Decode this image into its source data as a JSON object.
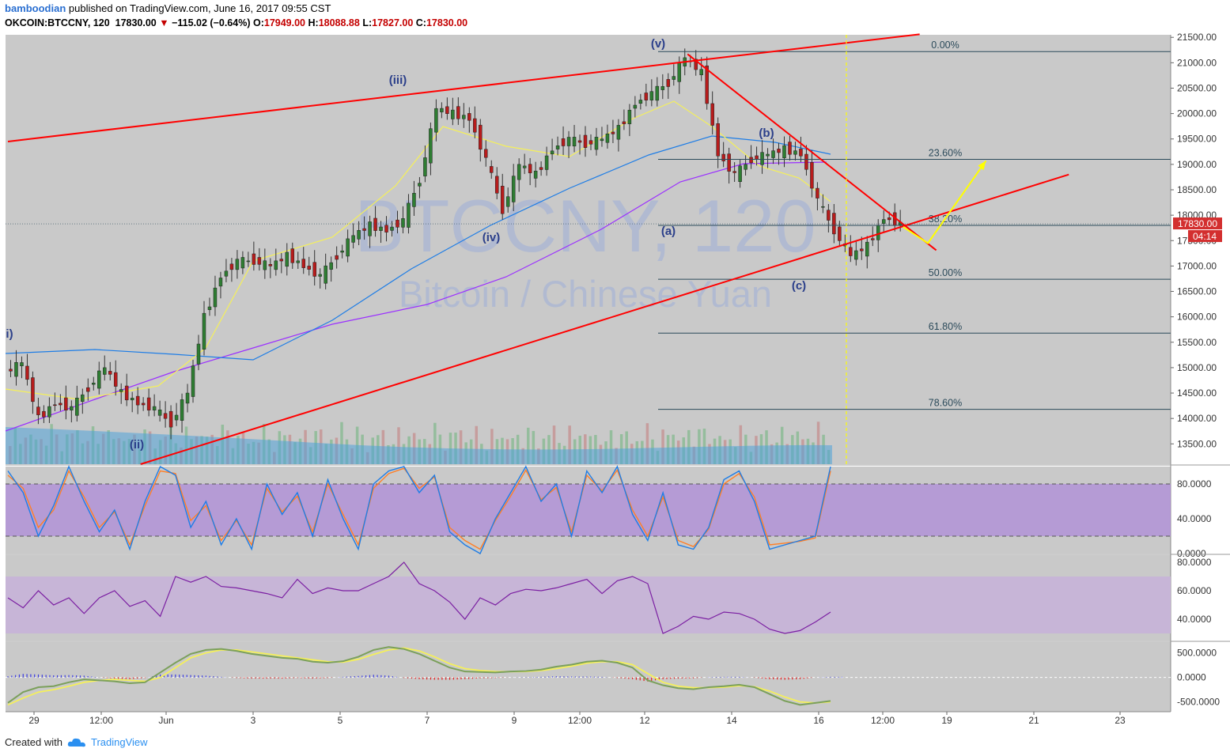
{
  "header": {
    "author": "bamboodian",
    "published_text": "published on TradingView.com, June 16, 2017 09:55 CST",
    "symbol_line": "OKCOIN:BTCCNY, 120",
    "last": "17830.00",
    "change_arrow": "▼",
    "change": "−115.02 (−0.64%)",
    "o_label": "O:",
    "o_value": "17949.00",
    "h_label": "H:",
    "h_value": "18088.88",
    "l_label": "L:",
    "l_value": "17827.00",
    "c_label": "C:",
    "c_value": "17830.00"
  },
  "watermark": {
    "symbol": "BTCCNY, 120",
    "description": "Bitcoin / Chinese Yuan"
  },
  "footer": {
    "created_with": "Created with",
    "brand": "TradingView",
    "logo_icon": "tradingview-cloud-icon"
  },
  "colors": {
    "pane_bg": "#c9c9c9",
    "up_candle": "#2e7d32",
    "down_candle": "#b71c1c",
    "trendline": "#ff0000",
    "forecast": "#ffff00",
    "fib_line": "#2b4a5a",
    "ema_fast": "#ffffff",
    "ema_mid": "#f5f05a",
    "ema_slow": "#1e7de6",
    "sma_long": "#9b30ff",
    "stoch_k": "#1e7de6",
    "stoch_d": "#ff7f27",
    "stoch_band": "#b090d8",
    "rsi": "#7b1fa2",
    "rsi_band": "#c6b3d8",
    "price_label_bg": "#d32f2f"
  },
  "chart_data": [
    {
      "type": "candlestick",
      "pane": "price",
      "symbol": "OKCOIN:BTCCNY",
      "interval": "120",
      "ylim": [
        13100,
        21550
      ],
      "y_ticks": [
        13500,
        14000,
        14500,
        15000,
        15500,
        16000,
        16500,
        17000,
        17500,
        18000,
        18500,
        19000,
        19500,
        20000,
        20500,
        21000,
        21500
      ],
      "y_tick_labels": [
        "13500.00",
        "14000.00",
        "14500.00",
        "15000.00",
        "15500.00",
        "16000.00",
        "16500.00",
        "17000.00",
        "17500.00",
        "18000.00",
        "18500.00",
        "19000.00",
        "19500.00",
        "20000.00",
        "20500.00",
        "21000.00",
        "21500.00"
      ],
      "x_tick_labels": [
        "29",
        "12:00",
        "Jun",
        "3",
        "5",
        "7",
        "9",
        "12:00",
        "12",
        "14",
        "16",
        "12:00",
        "19",
        "21",
        "23"
      ],
      "approx_close_path": [
        [
          0,
          14900
        ],
        [
          1,
          15100
        ],
        [
          2,
          14000
        ],
        [
          3,
          14300
        ],
        [
          4,
          14200
        ],
        [
          5,
          14600
        ],
        [
          6,
          15000
        ],
        [
          7,
          14500
        ],
        [
          8,
          14300
        ],
        [
          9,
          14200
        ],
        [
          10,
          13900
        ],
        [
          11,
          14500
        ],
        [
          12,
          16000
        ],
        [
          13,
          16800
        ],
        [
          14,
          17100
        ],
        [
          15,
          17100
        ],
        [
          16,
          17000
        ],
        [
          17,
          17200
        ],
        [
          18,
          17000
        ],
        [
          19,
          16800
        ],
        [
          20,
          17200
        ],
        [
          21,
          17600
        ],
        [
          22,
          17800
        ],
        [
          23,
          17700
        ],
        [
          24,
          17900
        ],
        [
          25,
          18700
        ],
        [
          26,
          20100
        ],
        [
          27,
          20000
        ],
        [
          28,
          19900
        ],
        [
          29,
          19100
        ],
        [
          30,
          18100
        ],
        [
          31,
          19000
        ],
        [
          32,
          18800
        ],
        [
          33,
          19300
        ],
        [
          34,
          19500
        ],
        [
          35,
          19400
        ],
        [
          36,
          19500
        ],
        [
          37,
          19700
        ],
        [
          38,
          20200
        ],
        [
          39,
          20400
        ],
        [
          40,
          20600
        ],
        [
          41,
          21100
        ],
        [
          42,
          20800
        ],
        [
          43,
          19200
        ],
        [
          44,
          18800
        ],
        [
          45,
          19100
        ],
        [
          46,
          19200
        ],
        [
          47,
          19300
        ],
        [
          48,
          19200
        ],
        [
          49,
          18300
        ],
        [
          50,
          17700
        ],
        [
          51,
          17200
        ],
        [
          52,
          17400
        ],
        [
          53,
          17950
        ],
        [
          54,
          17830
        ]
      ],
      "last_price": 17830.0,
      "price_label": "17830.00",
      "countdown_label": "04:14",
      "fibonacci": [
        {
          "level": "0.00%",
          "price": 21220
        },
        {
          "level": "23.60%",
          "price": 19100
        },
        {
          "level": "38.20%",
          "price": 17800
        },
        {
          "level": "50.00%",
          "price": 16740
        },
        {
          "level": "61.80%",
          "price": 15680
        },
        {
          "level": "78.60%",
          "price": 14180
        }
      ],
      "wave_labels": [
        "i)",
        "(ii)",
        "(iii)",
        "(iv)",
        "(v)",
        "(a)",
        "(b)",
        "(c)"
      ],
      "trendlines": [
        {
          "name": "upper-channel",
          "from": [
            0,
            19450
          ],
          "to": [
            55,
            21560
          ]
        },
        {
          "name": "lower-channel",
          "from": [
            8,
            13100
          ],
          "to": [
            64,
            18800
          ]
        },
        {
          "name": "downtrend",
          "from": [
            41,
            21170
          ],
          "to": [
            56,
            17310
          ]
        }
      ],
      "forecast_path": [
        [
          54,
          17770
        ],
        [
          55.5,
          17450
        ],
        [
          59,
          19070
        ]
      ]
    },
    {
      "type": "line",
      "pane": "stochastic",
      "ylim": [
        0,
        100
      ],
      "y_ticks": [
        0,
        40,
        80
      ],
      "y_tick_labels": [
        "0.0000",
        "40.0000",
        "80.0000"
      ],
      "band": [
        20,
        80
      ],
      "series": [
        {
          "name": "",
          "role": "K",
          "values": [
            95,
            70,
            20,
            55,
            100,
            60,
            25,
            50,
            5,
            60,
            100,
            90,
            30,
            60,
            10,
            40,
            5,
            80,
            45,
            70,
            20,
            85,
            40,
            5,
            80,
            95,
            100,
            70,
            90,
            25,
            10,
            0,
            40,
            70,
            100,
            60,
            80,
            20,
            95,
            70,
            100,
            45,
            15,
            70,
            10,
            5,
            30,
            85,
            95,
            60,
            5,
            10,
            15,
            20,
            100
          ]
        },
        {
          "name": "",
          "role": "D",
          "values": [
            90,
            75,
            30,
            50,
            95,
            65,
            30,
            48,
            10,
            55,
            95,
            92,
            38,
            55,
            15,
            38,
            10,
            75,
            48,
            66,
            25,
            80,
            45,
            10,
            75,
            92,
            98,
            75,
            88,
            30,
            15,
            5,
            38,
            66,
            96,
            62,
            76,
            25,
            90,
            72,
            96,
            50,
            20,
            65,
            15,
            8,
            28,
            80,
            92,
            65,
            10,
            12,
            14,
            18,
            95
          ]
        }
      ]
    },
    {
      "type": "line",
      "pane": "rsi",
      "ylim": [
        25,
        85
      ],
      "y_ticks": [
        40,
        60,
        80
      ],
      "y_tick_labels": [
        "40.0000",
        "60.0000",
        "80.0000"
      ],
      "band": [
        30,
        70
      ],
      "series": [
        {
          "name": "",
          "role": "RSI",
          "values": [
            55,
            48,
            60,
            50,
            55,
            44,
            55,
            60,
            49,
            53,
            42,
            70,
            66,
            70,
            63,
            62,
            60,
            58,
            55,
            68,
            58,
            62,
            60,
            60,
            65,
            70,
            80,
            65,
            60,
            52,
            40,
            55,
            50,
            58,
            61,
            60,
            62,
            65,
            68,
            58,
            67,
            70,
            65,
            30,
            35,
            42,
            40,
            45,
            44,
            40,
            33,
            30,
            32,
            38,
            45
          ]
        }
      ]
    },
    {
      "type": "line",
      "pane": "macd",
      "ylim": [
        -700,
        720
      ],
      "y_ticks": [
        -500,
        0,
        500
      ],
      "y_tick_labels": [
        "-500.0000",
        "0.0000",
        "500.0000"
      ],
      "series": [
        {
          "name": "",
          "role": "MACD",
          "values": [
            -520,
            -300,
            -200,
            -180,
            -100,
            -40,
            -60,
            -80,
            -120,
            -100,
            100,
            300,
            480,
            560,
            580,
            540,
            480,
            440,
            400,
            380,
            320,
            300,
            330,
            420,
            560,
            620,
            580,
            480,
            340,
            200,
            120,
            110,
            100,
            120,
            130,
            160,
            220,
            260,
            320,
            340,
            300,
            200,
            -60,
            -160,
            -220,
            -240,
            -200,
            -180,
            -150,
            -200,
            -340,
            -480,
            -560,
            -520,
            -480
          ]
        },
        {
          "name": "",
          "role": "Signal",
          "values": [
            -560,
            -420,
            -300,
            -250,
            -180,
            -100,
            -60,
            -40,
            -60,
            -80,
            0,
            200,
            400,
            500,
            560,
            560,
            520,
            480,
            440,
            400,
            360,
            320,
            310,
            370,
            470,
            560,
            600,
            540,
            420,
            280,
            180,
            140,
            120,
            118,
            120,
            140,
            180,
            230,
            290,
            320,
            320,
            260,
            80,
            -100,
            -180,
            -210,
            -210,
            -200,
            -170,
            -190,
            -280,
            -400,
            -500,
            -520,
            -500
          ]
        }
      ]
    }
  ]
}
